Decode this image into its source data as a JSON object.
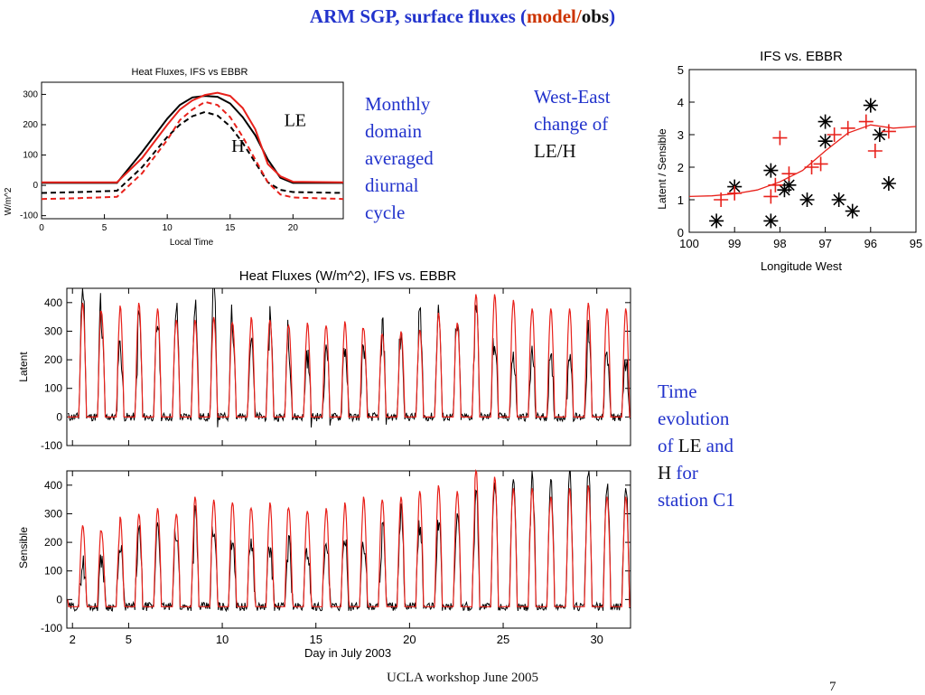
{
  "slide": {
    "title_main": "ARM SGP, surface fluxes (",
    "title_model": "model",
    "title_slash": "/",
    "title_obs": "obs",
    "title_close": ")",
    "note_monthly": [
      "Monthly",
      "domain",
      "averaged",
      "diurnal",
      "cycle"
    ],
    "note_westeast": [
      "West-East",
      "change of"
    ],
    "note_westeast_black": "LE/H",
    "note_time": {
      "l1": "Time",
      "l2": "evolution",
      "l3a": "of ",
      "l3b": "LE",
      "l3c": " and",
      "l4a": "H",
      "l4b": " for",
      "l5": "station C1"
    },
    "footer": "UCLA workshop June 2005",
    "page_number": "7"
  },
  "colors": {
    "model": "#e8211b",
    "obs": "#000000",
    "note": "#2233cc"
  },
  "chart_data": [
    {
      "id": "diurnal",
      "type": "line",
      "title": "Heat Fluxes, IFS vs EBBR",
      "xlabel": "Local Time",
      "ylabel": "W/m^2",
      "xlim": [
        0,
        24
      ],
      "ylim": [
        -110,
        340
      ],
      "xticks": [
        0,
        5,
        10,
        15,
        20
      ],
      "yticks": [
        -100,
        0,
        100,
        200,
        300
      ],
      "annotations": [
        {
          "text": "LE",
          "x": 19.3,
          "y": 195
        },
        {
          "text": "H",
          "x": 15.1,
          "y": 110
        }
      ],
      "series": [
        {
          "key": "le_obs",
          "color": "#000000",
          "dash": false,
          "x": [
            0,
            6,
            8,
            10,
            11,
            12,
            13,
            14,
            15,
            16,
            17,
            18,
            19,
            20,
            24
          ],
          "y": [
            8,
            8,
            110,
            220,
            265,
            290,
            295,
            292,
            270,
            225,
            165,
            85,
            25,
            8,
            8
          ]
        },
        {
          "key": "le_model",
          "color": "#e8211b",
          "dash": false,
          "x": [
            0,
            6,
            8,
            10,
            11,
            12,
            13,
            14,
            15,
            16,
            17,
            18,
            19,
            20,
            24
          ],
          "y": [
            10,
            10,
            90,
            200,
            250,
            280,
            298,
            305,
            295,
            255,
            185,
            70,
            30,
            12,
            10
          ]
        },
        {
          "key": "h_obs",
          "color": "#000000",
          "dash": true,
          "x": [
            0,
            3,
            6,
            8,
            10,
            11,
            12,
            13,
            14,
            15,
            16,
            17,
            18,
            19,
            20,
            24
          ],
          "y": [
            -25,
            -22,
            -18,
            60,
            160,
            200,
            228,
            242,
            230,
            195,
            140,
            75,
            10,
            -15,
            -22,
            -25
          ]
        },
        {
          "key": "h_model",
          "color": "#e8211b",
          "dash": true,
          "x": [
            0,
            3,
            6,
            8,
            10,
            11,
            12,
            13,
            14,
            15,
            16,
            17,
            18,
            19,
            20,
            24
          ],
          "y": [
            -45,
            -42,
            -38,
            40,
            150,
            215,
            250,
            275,
            265,
            225,
            160,
            85,
            10,
            -30,
            -40,
            -45
          ]
        }
      ]
    },
    {
      "id": "ratio",
      "type": "scatter",
      "title": "IFS vs. EBBR",
      "xlabel": "Longitude West",
      "ylabel": "Latent / Sensible",
      "xlim": [
        100,
        95
      ],
      "ylim": [
        0,
        5
      ],
      "xticks": [
        100,
        99,
        98,
        97,
        96,
        95
      ],
      "yticks": [
        0,
        1,
        2,
        3,
        4,
        5
      ],
      "series": [
        {
          "key": "obs",
          "marker": "asterisk",
          "color": "#000000",
          "x": [
            99.4,
            99.0,
            98.2,
            98.2,
            97.9,
            97.8,
            97.4,
            97.0,
            97.0,
            96.7,
            96.4,
            96.0,
            95.8,
            95.6
          ],
          "y": [
            0.35,
            1.4,
            1.9,
            0.35,
            1.3,
            1.45,
            1.0,
            2.8,
            3.4,
            1.0,
            0.65,
            3.9,
            3.0,
            1.5
          ]
        },
        {
          "key": "model",
          "marker": "plus",
          "color": "#e8211b",
          "x": [
            99.3,
            99.0,
            98.2,
            98.1,
            98.0,
            97.8,
            97.3,
            97.1,
            96.8,
            96.5,
            96.1,
            95.9,
            95.6
          ],
          "y": [
            1.0,
            1.2,
            1.1,
            1.45,
            2.9,
            1.8,
            2.0,
            2.1,
            3.0,
            3.2,
            3.4,
            2.5,
            3.1
          ]
        },
        {
          "key": "fit",
          "marker": "line",
          "color": "#e8211b",
          "x": [
            100,
            99.5,
            99,
            98.5,
            98,
            97.5,
            97,
            96.5,
            96,
            95.5,
            95
          ],
          "y": [
            1.1,
            1.12,
            1.18,
            1.3,
            1.55,
            1.9,
            2.5,
            3.05,
            3.3,
            3.2,
            3.25
          ]
        }
      ]
    },
    {
      "id": "latent_ts",
      "type": "line",
      "title": "Heat Fluxes (W/m^2), IFS vs. EBBR",
      "ylabel": "Latent",
      "xlim": [
        1.7,
        31.8
      ],
      "ylim": [
        -100,
        450
      ],
      "yticks": [
        -100,
        0,
        100,
        200,
        300,
        400
      ],
      "xticks": [
        2,
        5,
        10,
        15,
        20,
        25,
        30
      ],
      "model_daily_peak": [
        400,
        400,
        370,
        390,
        400,
        380,
        340,
        340,
        350,
        330,
        350,
        340,
        320,
        330,
        320,
        335,
        310,
        290,
        300,
        305,
        365,
        330,
        430,
        430,
        410,
        380,
        380,
        380,
        400,
        380
      ],
      "obs_daily_peak": [
        460,
        460,
        300,
        240,
        360,
        330,
        380,
        410,
        460,
        300,
        290,
        370,
        240,
        210,
        260,
        240,
        250,
        320,
        280,
        370,
        370,
        320,
        400,
        250,
        200,
        220,
        190,
        230,
        300,
        200
      ]
    },
    {
      "id": "sensible_ts",
      "type": "line",
      "ylabel": "Sensible",
      "xlabel": "Day in July 2003",
      "xlim": [
        1.7,
        31.8
      ],
      "ylim": [
        -100,
        450
      ],
      "yticks": [
        -100,
        0,
        100,
        200,
        300,
        400
      ],
      "xticks": [
        2,
        5,
        10,
        15,
        20,
        25,
        30
      ],
      "model_daily_peak": [
        260,
        260,
        240,
        290,
        300,
        320,
        300,
        360,
        350,
        340,
        320,
        340,
        320,
        310,
        320,
        340,
        360,
        350,
        360,
        380,
        400,
        380,
        460,
        430,
        390,
        390,
        360,
        390,
        400,
        360
      ],
      "obs_daily_peak": [
        120,
        130,
        150,
        200,
        230,
        280,
        220,
        300,
        230,
        220,
        200,
        180,
        200,
        170,
        200,
        230,
        200,
        270,
        300,
        260,
        270,
        300,
        380,
        410,
        400,
        440,
        420,
        460,
        440,
        410
      ]
    }
  ]
}
